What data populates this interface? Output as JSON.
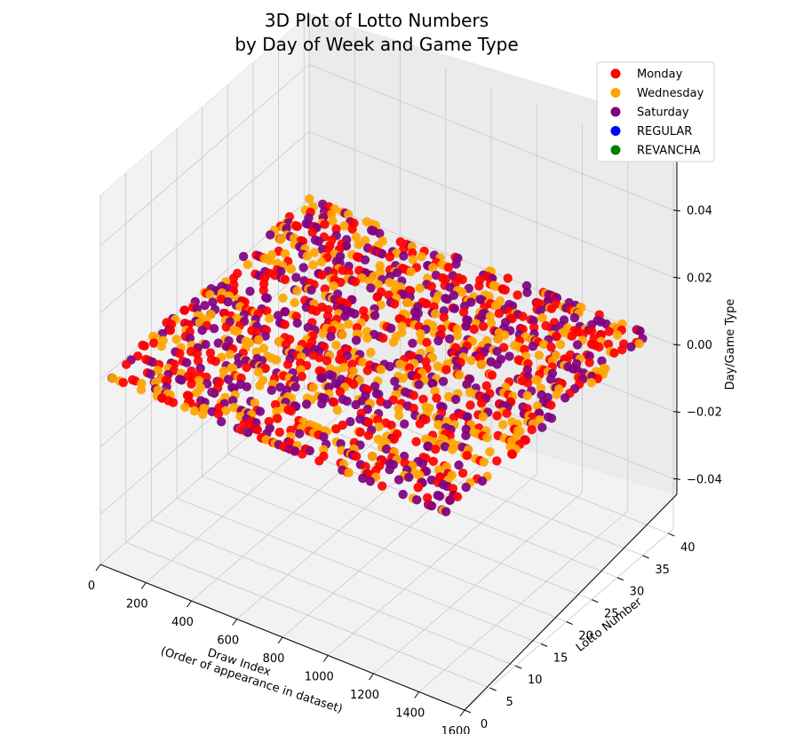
{
  "chart_data": {
    "type": "scatter",
    "projection": "3d",
    "title": [
      "3D Plot of Lotto Numbers",
      "by Day of Week and Game Type"
    ],
    "xlabel": [
      "Draw Index",
      "(Order of appearance in dataset)"
    ],
    "ylabel": "Lotto Number",
    "zlabel": "Day/Game Type",
    "xlim": [
      0,
      1600
    ],
    "ylim": [
      0,
      41
    ],
    "zlim": [
      -0.055,
      0.055
    ],
    "x_ticks": [
      "0",
      "200",
      "400",
      "600",
      "800",
      "1000",
      "1200",
      "1400",
      "1600"
    ],
    "y_ticks": [
      "0",
      "5",
      "10",
      "15",
      "20",
      "25",
      "30",
      "35",
      "40"
    ],
    "z_ticks": [
      "−0.04",
      "−0.02",
      "0.00",
      "0.02",
      "0.04"
    ],
    "z_value_all_points": 0.0,
    "point_rule": "draw_index 0..~1500, lotto number 1..41 (uniform); day cycles Monday, Wednesday, Saturday",
    "series": [
      {
        "name": "Monday",
        "color": "#ff0000"
      },
      {
        "name": "Wednesday",
        "color": "#ffa500"
      },
      {
        "name": "Saturday",
        "color": "#800080"
      },
      {
        "name": "REGULAR",
        "color": "#0000ff"
      },
      {
        "name": "REVANCHA",
        "color": "#008000"
      }
    ],
    "legend_position": "top-right",
    "grid": true
  }
}
